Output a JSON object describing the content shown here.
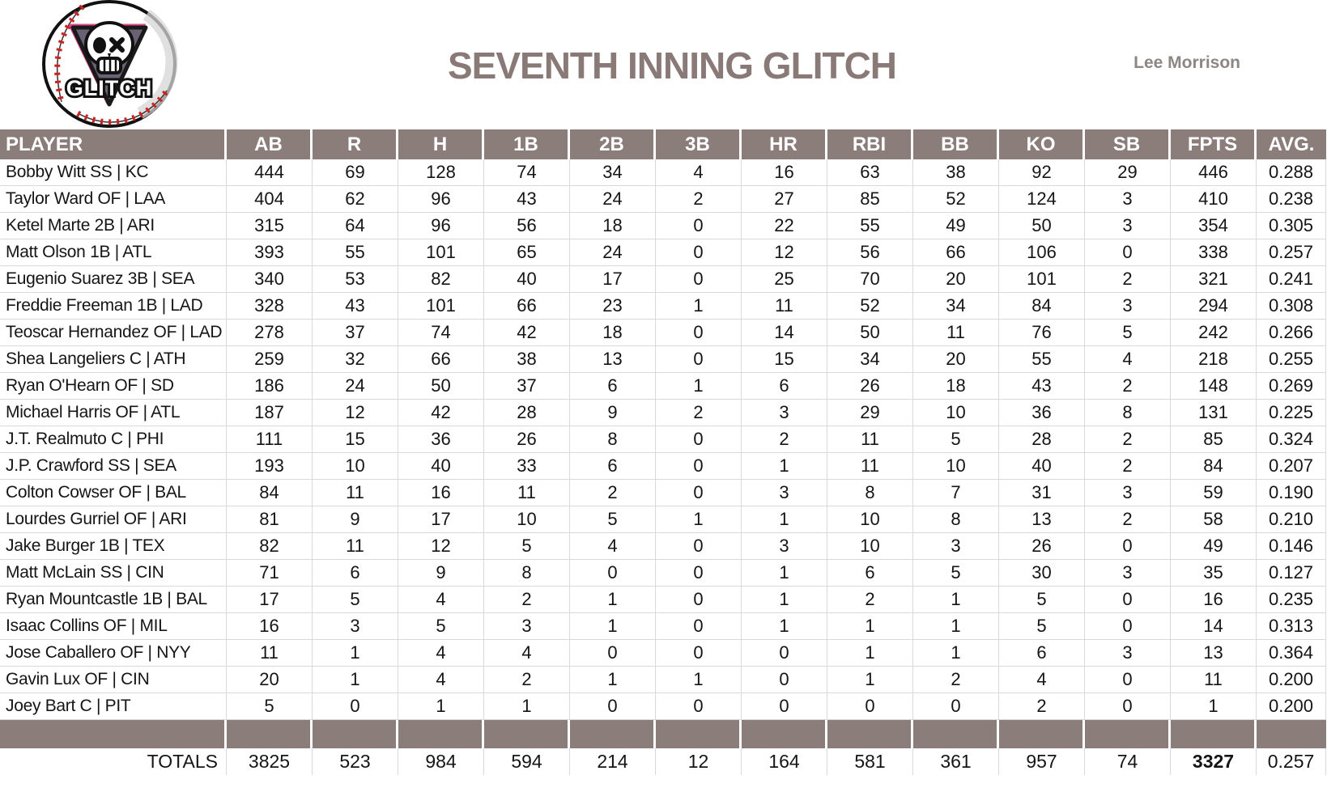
{
  "header": {
    "title": "SEVENTH INNING GLITCH",
    "owner": "Lee Morrison",
    "logo": {
      "name": "glitch-baseball-logo",
      "text": "GLITCH"
    }
  },
  "colors": {
    "header_bg": "#8a7d7a",
    "grid_line": "#d9d9d9",
    "title_text": "#8a7a77",
    "owner_text": "#8e8683",
    "stitch_red": "#cc2222",
    "triangle_fill": "#696274"
  },
  "table": {
    "columns": [
      "PLAYER",
      "AB",
      "R",
      "H",
      "1B",
      "2B",
      "3B",
      "HR",
      "RBI",
      "BB",
      "KO",
      "SB",
      "FPTS",
      "AVG."
    ],
    "rows": [
      {
        "player": "Bobby Witt SS | KC",
        "stats": [
          444,
          69,
          128,
          74,
          34,
          4,
          16,
          63,
          38,
          92,
          29,
          446,
          "0.288"
        ]
      },
      {
        "player": "Taylor Ward OF | LAA",
        "stats": [
          404,
          62,
          96,
          43,
          24,
          2,
          27,
          85,
          52,
          124,
          3,
          410,
          "0.238"
        ]
      },
      {
        "player": "Ketel Marte 2B | ARI",
        "stats": [
          315,
          64,
          96,
          56,
          18,
          0,
          22,
          55,
          49,
          50,
          3,
          354,
          "0.305"
        ]
      },
      {
        "player": "Matt Olson 1B | ATL",
        "stats": [
          393,
          55,
          101,
          65,
          24,
          0,
          12,
          56,
          66,
          106,
          0,
          338,
          "0.257"
        ]
      },
      {
        "player": "Eugenio Suarez 3B | SEA",
        "stats": [
          340,
          53,
          82,
          40,
          17,
          0,
          25,
          70,
          20,
          101,
          2,
          321,
          "0.241"
        ]
      },
      {
        "player": "Freddie Freeman 1B | LAD",
        "stats": [
          328,
          43,
          101,
          66,
          23,
          1,
          11,
          52,
          34,
          84,
          3,
          294,
          "0.308"
        ]
      },
      {
        "player": "Teoscar Hernandez OF | LAD",
        "stats": [
          278,
          37,
          74,
          42,
          18,
          0,
          14,
          50,
          11,
          76,
          5,
          242,
          "0.266"
        ]
      },
      {
        "player": "Shea Langeliers C | ATH",
        "stats": [
          259,
          32,
          66,
          38,
          13,
          0,
          15,
          34,
          20,
          55,
          4,
          218,
          "0.255"
        ]
      },
      {
        "player": "Ryan O'Hearn OF | SD",
        "stats": [
          186,
          24,
          50,
          37,
          6,
          1,
          6,
          26,
          18,
          43,
          2,
          148,
          "0.269"
        ]
      },
      {
        "player": "Michael Harris OF | ATL",
        "stats": [
          187,
          12,
          42,
          28,
          9,
          2,
          3,
          29,
          10,
          36,
          8,
          131,
          "0.225"
        ]
      },
      {
        "player": "J.T. Realmuto C | PHI",
        "stats": [
          111,
          15,
          36,
          26,
          8,
          0,
          2,
          11,
          5,
          28,
          2,
          85,
          "0.324"
        ]
      },
      {
        "player": "J.P. Crawford SS | SEA",
        "stats": [
          193,
          10,
          40,
          33,
          6,
          0,
          1,
          11,
          10,
          40,
          2,
          84,
          "0.207"
        ]
      },
      {
        "player": "Colton Cowser OF | BAL",
        "stats": [
          84,
          11,
          16,
          11,
          2,
          0,
          3,
          8,
          7,
          31,
          3,
          59,
          "0.190"
        ]
      },
      {
        "player": "Lourdes Gurriel OF | ARI",
        "stats": [
          81,
          9,
          17,
          10,
          5,
          1,
          1,
          10,
          8,
          13,
          2,
          58,
          "0.210"
        ]
      },
      {
        "player": "Jake Burger 1B | TEX",
        "stats": [
          82,
          11,
          12,
          5,
          4,
          0,
          3,
          10,
          3,
          26,
          0,
          49,
          "0.146"
        ]
      },
      {
        "player": "Matt McLain SS | CIN",
        "stats": [
          71,
          6,
          9,
          8,
          0,
          0,
          1,
          6,
          5,
          30,
          3,
          35,
          "0.127"
        ]
      },
      {
        "player": "Ryan Mountcastle 1B | BAL",
        "stats": [
          17,
          5,
          4,
          2,
          1,
          0,
          1,
          2,
          1,
          5,
          0,
          16,
          "0.235"
        ]
      },
      {
        "player": "Isaac Collins OF | MIL",
        "stats": [
          16,
          3,
          5,
          3,
          1,
          0,
          1,
          1,
          1,
          5,
          0,
          14,
          "0.313"
        ]
      },
      {
        "player": "Jose Caballero OF | NYY",
        "stats": [
          11,
          1,
          4,
          4,
          0,
          0,
          0,
          1,
          1,
          6,
          3,
          13,
          "0.364"
        ]
      },
      {
        "player": "Gavin Lux OF | CIN",
        "stats": [
          20,
          1,
          4,
          2,
          1,
          1,
          0,
          1,
          2,
          4,
          0,
          11,
          "0.200"
        ]
      },
      {
        "player": "Joey Bart C | PIT",
        "stats": [
          5,
          0,
          1,
          1,
          0,
          0,
          0,
          0,
          0,
          2,
          0,
          1,
          "0.200"
        ]
      }
    ],
    "totals": {
      "label": "TOTALS",
      "values": [
        3825,
        523,
        984,
        594,
        214,
        12,
        164,
        581,
        361,
        957,
        74,
        3327,
        "0.257"
      ]
    }
  }
}
